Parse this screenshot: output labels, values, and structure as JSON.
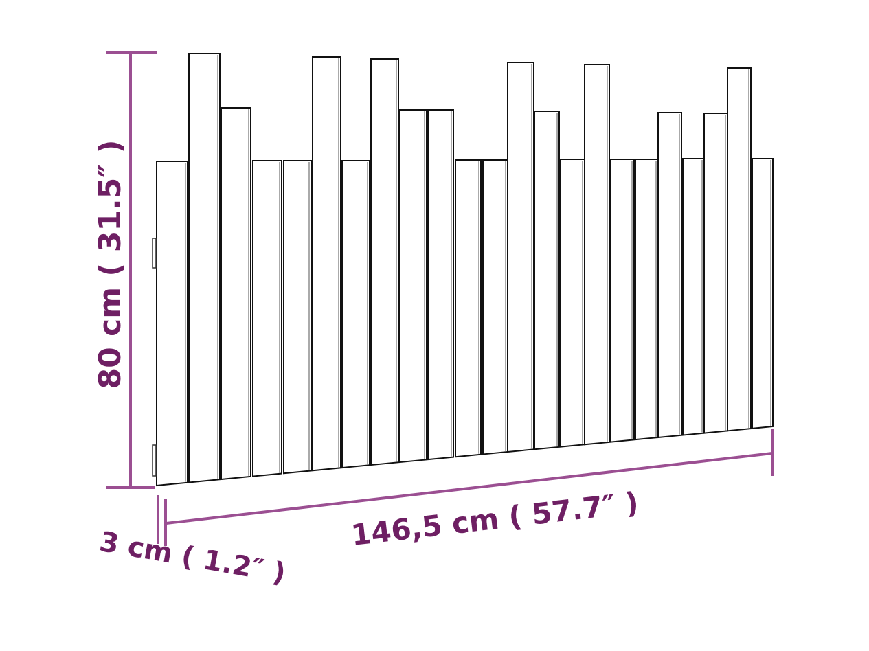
{
  "dimensions": {
    "height": "80 cm ( 31.5″ )",
    "width": "146,5 cm ( 57.7″ )",
    "depth": "3 cm ( 1.2″ )"
  },
  "colors": {
    "dimension_line": "#9b4f92",
    "dimension_text": "#6e1f63",
    "outline": "#111111"
  },
  "product": {
    "plank_count": 23
  }
}
